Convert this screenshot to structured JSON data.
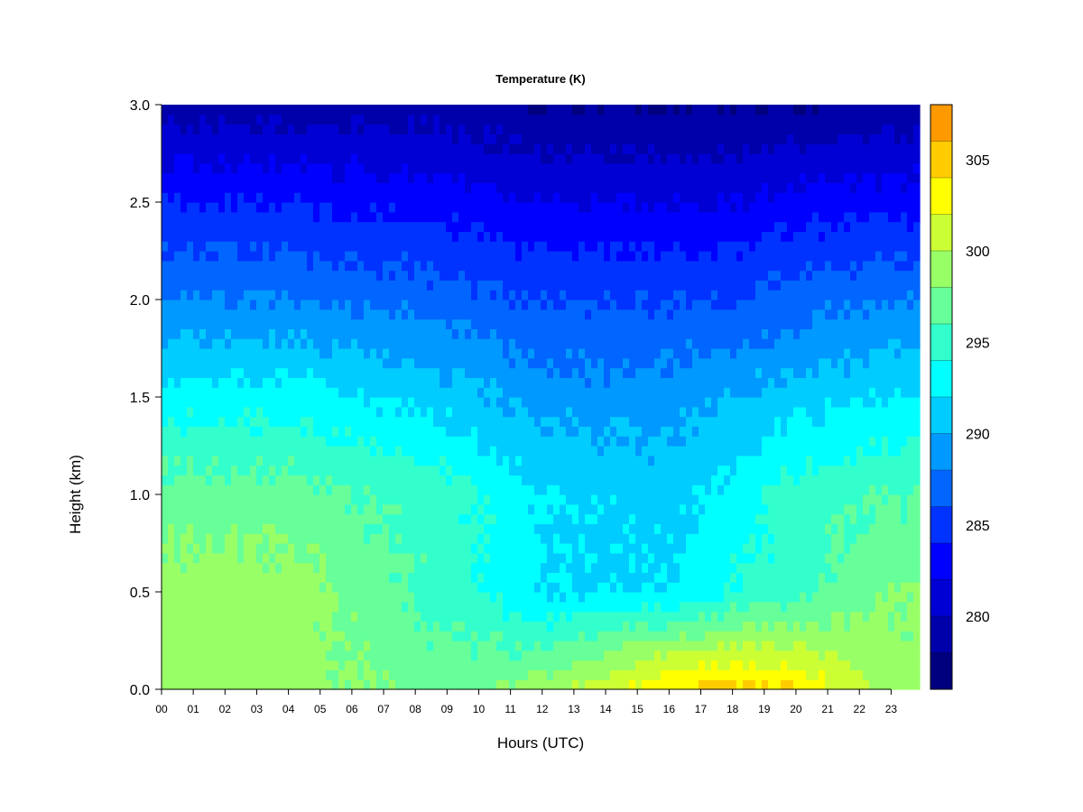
{
  "chart_data": {
    "type": "heatmap",
    "title": "Temperature (K)",
    "xlabel": "Hours (UTC)",
    "ylabel": "Height (km)",
    "x_ticks": [
      "00",
      "01",
      "02",
      "03",
      "04",
      "05",
      "06",
      "07",
      "08",
      "09",
      "10",
      "11",
      "12",
      "13",
      "14",
      "15",
      "16",
      "17",
      "18",
      "19",
      "20",
      "21",
      "22",
      "23"
    ],
    "xlim": [
      0,
      23.9
    ],
    "y_ticks": [
      "0.0",
      "0.5",
      "1.0",
      "1.5",
      "2.0",
      "2.5",
      "3.0"
    ],
    "ylim": [
      0,
      3.0
    ],
    "colorbar": {
      "ticks": [
        "280",
        "285",
        "290",
        "295",
        "300",
        "305"
      ],
      "range": [
        276,
        308
      ],
      "levels": [
        276,
        278,
        280,
        282,
        284,
        286,
        288,
        290,
        292,
        294,
        296,
        298,
        300,
        302,
        304,
        306,
        308
      ],
      "colors": [
        "#00007F",
        "#0000AA",
        "#0000D4",
        "#0000FF",
        "#0033FF",
        "#0066FF",
        "#0099FF",
        "#00CCFF",
        "#00FFFF",
        "#33FFCC",
        "#66FF99",
        "#99FF66",
        "#CCFF33",
        "#FFFF00",
        "#FFCC00",
        "#FF9900",
        "#FF6600",
        "#FF3300",
        "#FF0000",
        "#D40000",
        "#AA0000",
        "#7F0000"
      ]
    },
    "profiles_summary": [
      {
        "hour": 0,
        "surface_K": 299,
        "at_0_5km_K": 299,
        "at_1km_K": 297,
        "at_1_5km_K": 293,
        "at_2km_K": 288,
        "at_2_5km_K": 284,
        "at_3km_K": 279
      },
      {
        "hour": 4,
        "surface_K": 299,
        "at_0_5km_K": 299,
        "at_1km_K": 297,
        "at_1_5km_K": 293,
        "at_2km_K": 288,
        "at_2_5km_K": 284,
        "at_3km_K": 279
      },
      {
        "hour": 9,
        "surface_K": 297,
        "at_0_5km_K": 295,
        "at_1km_K": 295,
        "at_1_5km_K": 291,
        "at_2km_K": 287,
        "at_2_5km_K": 283,
        "at_3km_K": 279
      },
      {
        "hour": 12,
        "surface_K": 299,
        "at_0_5km_K": 292,
        "at_1km_K": 292,
        "at_1_5km_K": 289,
        "at_2km_K": 286,
        "at_2_5km_K": 282,
        "at_3km_K": 278
      },
      {
        "hour": 16,
        "surface_K": 304,
        "at_0_5km_K": 292,
        "at_1km_K": 291,
        "at_1_5km_K": 289,
        "at_2km_K": 286,
        "at_2_5km_K": 282,
        "at_3km_K": 278
      },
      {
        "hour": 18,
        "surface_K": 305,
        "at_0_5km_K": 294,
        "at_1km_K": 293,
        "at_1_5km_K": 290,
        "at_2km_K": 286,
        "at_2_5km_K": 282,
        "at_3km_K": 278
      },
      {
        "hour": 20,
        "surface_K": 304,
        "at_0_5km_K": 295,
        "at_1km_K": 295,
        "at_1_5km_K": 291,
        "at_2km_K": 287,
        "at_2_5km_K": 283,
        "at_3km_K": 278
      },
      {
        "hour": 23,
        "surface_K": 299,
        "at_0_5km_K": 298,
        "at_1km_K": 296,
        "at_1_5km_K": 292,
        "at_2km_K": 288,
        "at_2_5km_K": 283,
        "at_3km_K": 279
      }
    ]
  }
}
